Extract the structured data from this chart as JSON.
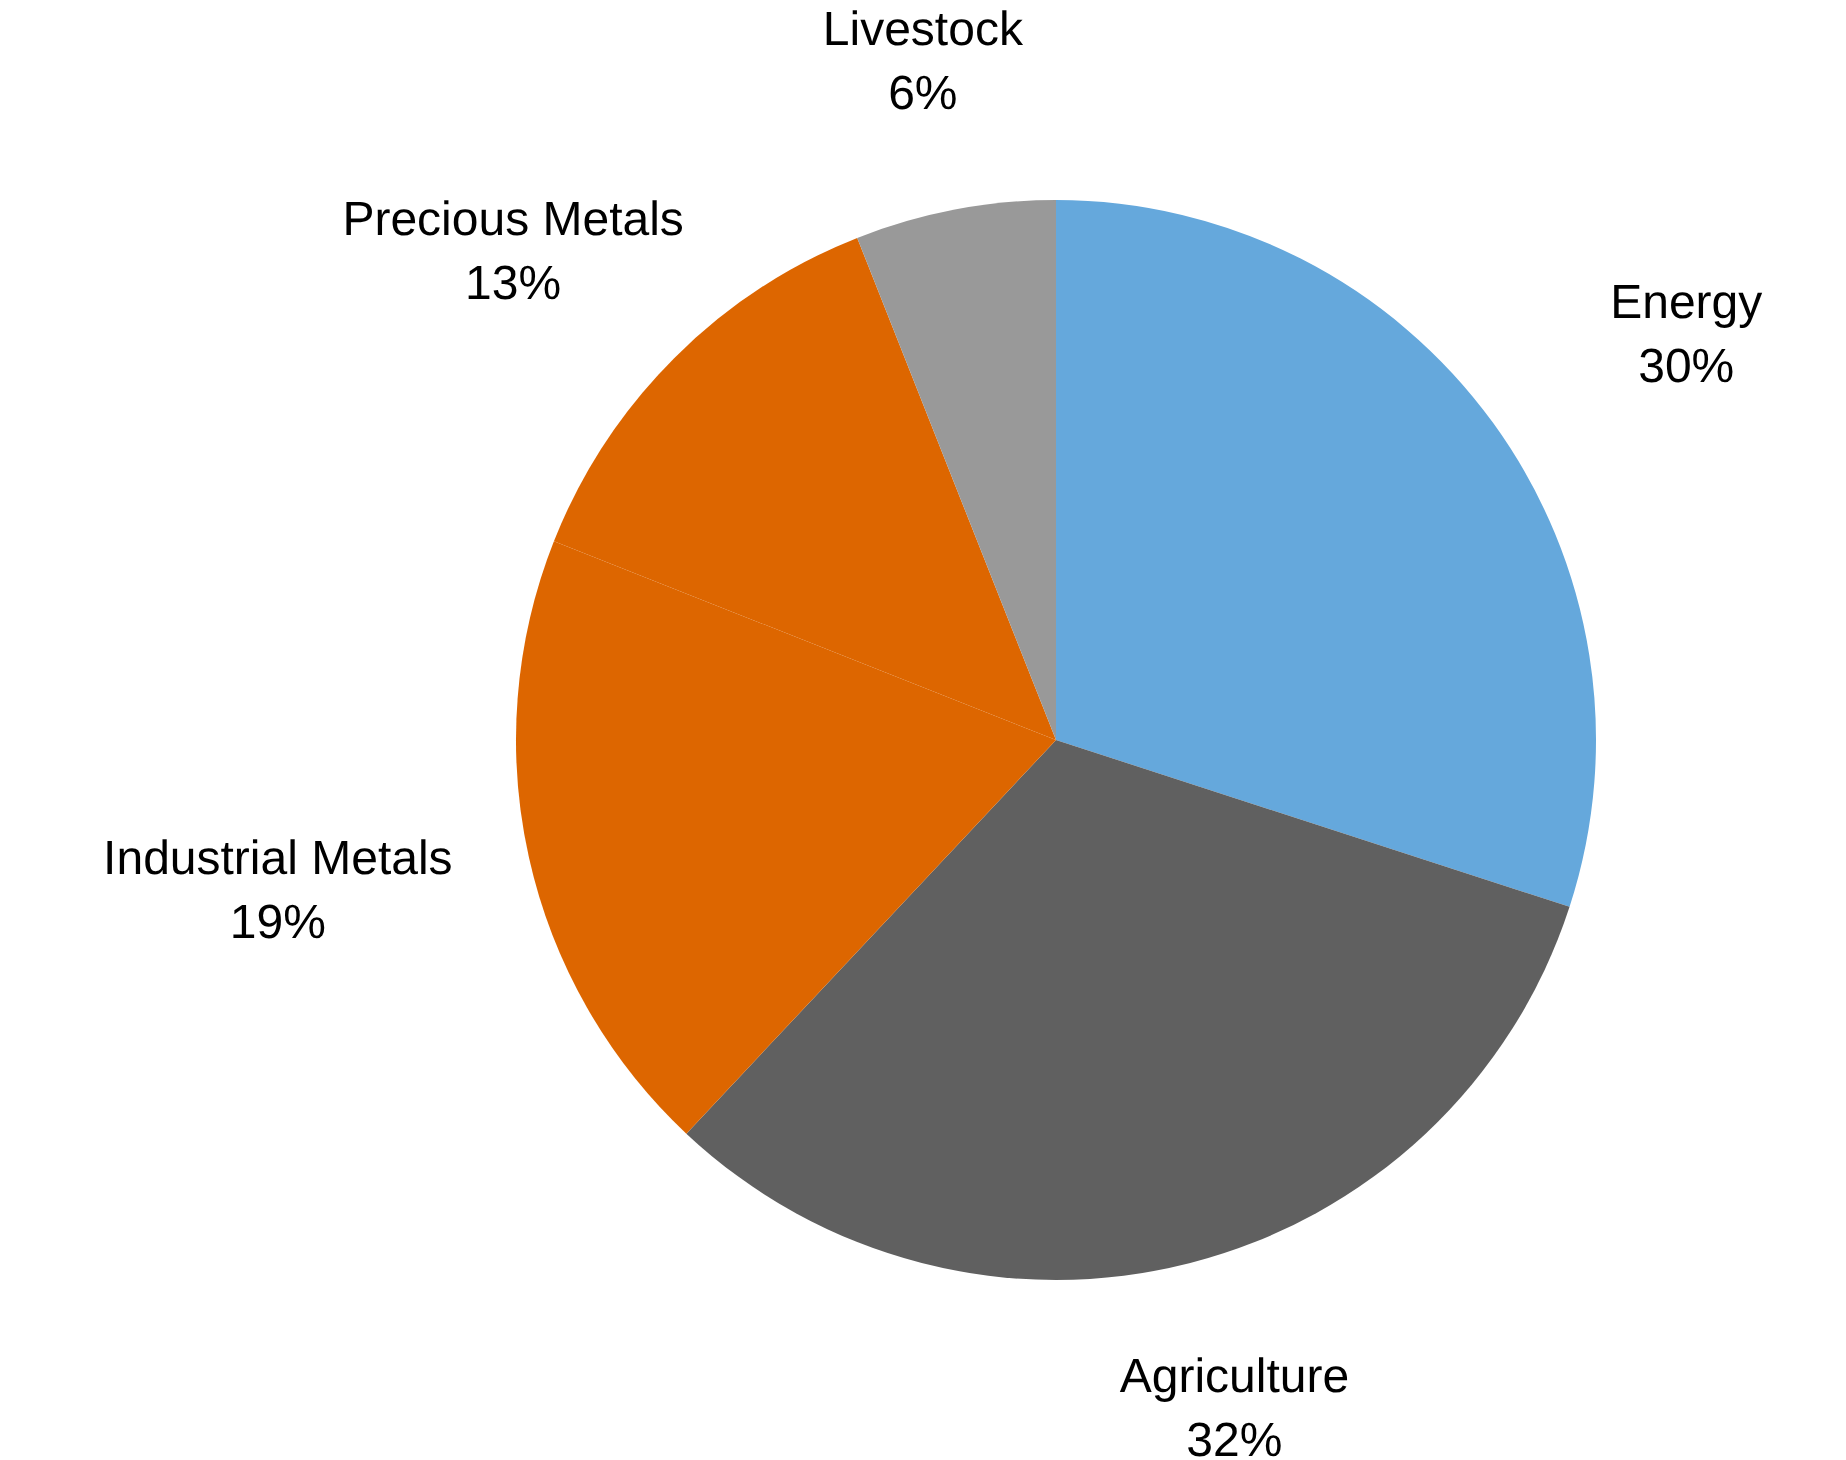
{
  "chart_data": {
    "type": "pie",
    "categories": [
      "Energy",
      "Agriculture",
      "Industrial Metals",
      "Precious Metals",
      "Livestock"
    ],
    "values": [
      30,
      32,
      19,
      13,
      6
    ],
    "value_labels": [
      "30%",
      "32%",
      "19%",
      "13%",
      "6%"
    ],
    "colors": [
      "#65a8dc",
      "#606060",
      "#dd6600",
      "#dd6600",
      "#999999"
    ],
    "legend": false
  }
}
